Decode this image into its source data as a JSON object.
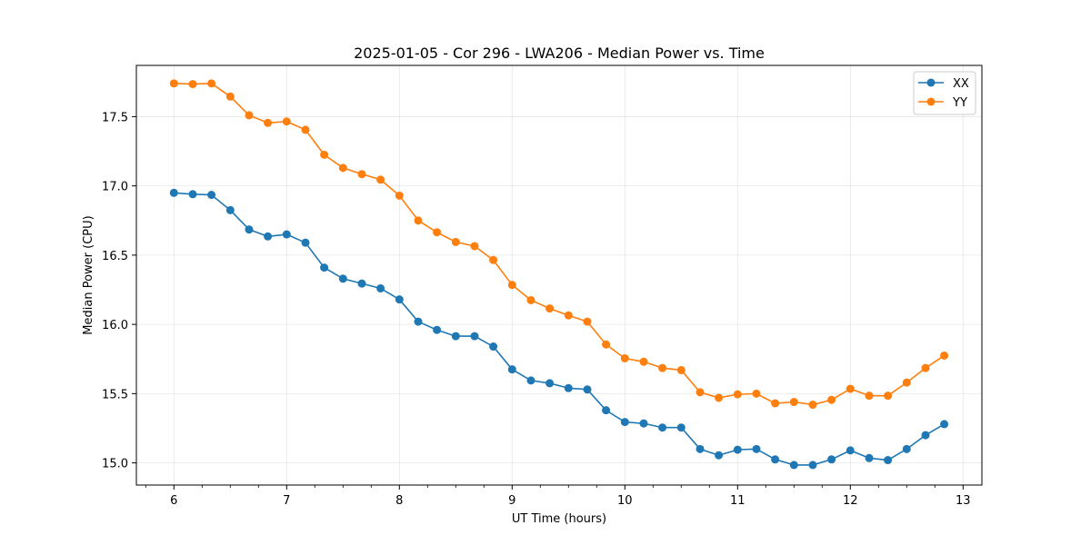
{
  "chart_data": {
    "type": "line",
    "title": "2025-01-05 - Cor 296 - LWA206 - Median Power vs. Time",
    "xlabel": "UT Time (hours)",
    "ylabel": "Median Power (CPU)",
    "xlim": [
      5.667,
      13.167
    ],
    "ylim": [
      14.84,
      17.87
    ],
    "xticks": [
      6,
      7,
      8,
      9,
      10,
      11,
      12,
      13
    ],
    "xtick_labels": [
      "6",
      "7",
      "8",
      "9",
      "10",
      "11",
      "12",
      "13"
    ],
    "xminor_step": 0.25,
    "yticks": [
      15.0,
      15.5,
      16.0,
      16.5,
      17.0,
      17.5
    ],
    "ytick_labels": [
      "15.0",
      "15.5",
      "16.0",
      "16.5",
      "17.0",
      "17.5"
    ],
    "grid": true,
    "legend_position": "top-right",
    "x": [
      6.0,
      6.167,
      6.333,
      6.5,
      6.667,
      6.833,
      7.0,
      7.167,
      7.333,
      7.5,
      7.667,
      7.833,
      8.0,
      8.167,
      8.333,
      8.5,
      8.667,
      8.833,
      9.0,
      9.167,
      9.333,
      9.5,
      9.667,
      9.833,
      10.0,
      10.167,
      10.333,
      10.5,
      10.667,
      10.833,
      11.0,
      11.167,
      11.333,
      11.5,
      11.667,
      11.833,
      12.0,
      12.167,
      12.333,
      12.5,
      12.667,
      12.833
    ],
    "series": [
      {
        "name": "XX",
        "color": "#1f77b4",
        "values": [
          16.95,
          16.94,
          16.935,
          16.825,
          16.685,
          16.635,
          16.65,
          16.59,
          16.41,
          16.33,
          16.295,
          16.26,
          16.18,
          16.02,
          15.96,
          15.915,
          15.915,
          15.84,
          15.675,
          15.595,
          15.575,
          15.54,
          15.53,
          15.38,
          15.295,
          15.285,
          15.255,
          15.255,
          15.1,
          15.055,
          15.095,
          15.1,
          15.025,
          14.985,
          14.985,
          15.025,
          15.09,
          15.035,
          15.02,
          15.1,
          15.2,
          15.28
        ]
      },
      {
        "name": "YY",
        "color": "#ff7f0e",
        "values": [
          17.74,
          17.735,
          17.74,
          17.645,
          17.51,
          17.455,
          17.465,
          17.405,
          17.225,
          17.13,
          17.085,
          17.045,
          16.93,
          16.75,
          16.665,
          16.595,
          16.565,
          16.465,
          16.285,
          16.175,
          16.115,
          16.065,
          16.02,
          15.855,
          15.755,
          15.73,
          15.685,
          15.67,
          15.51,
          15.47,
          15.495,
          15.5,
          15.43,
          15.44,
          15.42,
          15.455,
          15.535,
          15.485,
          15.485,
          15.58,
          15.685,
          15.775
        ]
      }
    ]
  }
}
